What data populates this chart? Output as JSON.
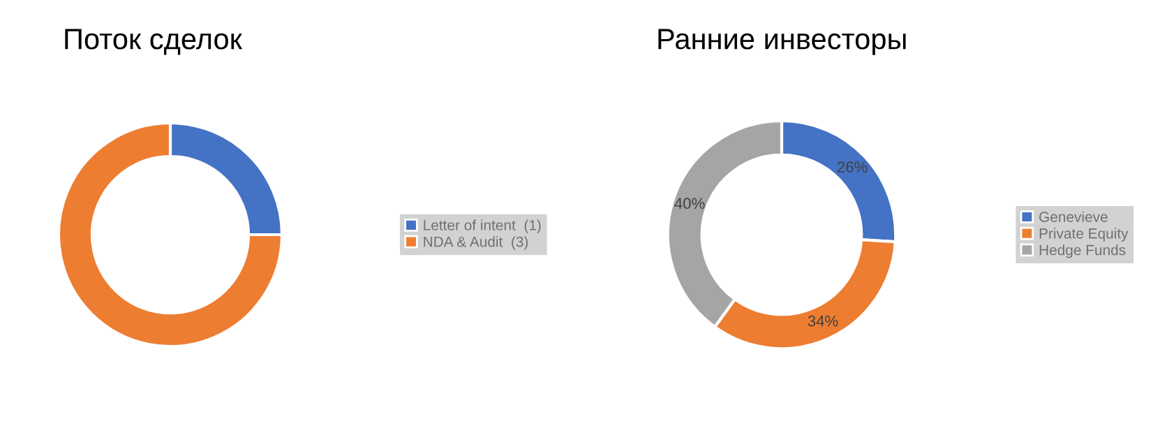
{
  "chart_data": [
    {
      "type": "donut",
      "title": "Поток сделок",
      "categories": [
        "Letter of intent  (1)",
        "NDA & Audit  (3)"
      ],
      "values": [
        1,
        3
      ],
      "colors": [
        "#4472c4",
        "#ed7d31"
      ],
      "legend": "right"
    },
    {
      "type": "donut",
      "title": "Ранние инвесторы",
      "categories": [
        "Genevieve",
        "Private Equity",
        "Hedge Funds"
      ],
      "values": [
        26,
        34,
        40
      ],
      "colors": [
        "#4472c4",
        "#ed7d31",
        "#a5a5a5"
      ],
      "value_labels": [
        "26%",
        "34%",
        "40%"
      ],
      "legend": "right"
    }
  ]
}
